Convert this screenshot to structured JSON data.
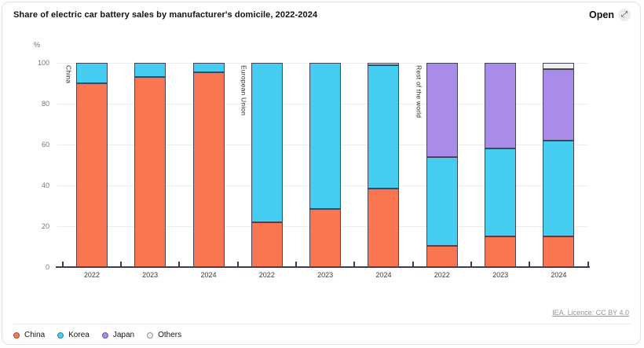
{
  "header": {
    "open_label": "Open",
    "open_icon_glyph": "⤢"
  },
  "footer": {
    "license_link": "IEA. Licence: CC BY 4.0"
  },
  "chart_data": {
    "type": "bar",
    "stacked": true,
    "title": "Share of electric car battery sales by manufacturer's domicile, 2022-2024",
    "ylabel": "%",
    "xlabel": "",
    "ylim": [
      0,
      100
    ],
    "yticks": [
      0,
      20,
      40,
      60,
      80,
      100
    ],
    "grid": "horizontal",
    "legend_position": "bottom-left",
    "series": [
      {
        "name": "China",
        "color": "#fa7650"
      },
      {
        "name": "Korea",
        "color": "#45cdf2"
      },
      {
        "name": "Japan",
        "color": "#a98bea"
      },
      {
        "name": "Others",
        "color": "#efeee9"
      }
    ],
    "groups": [
      {
        "label": "China",
        "years": [
          "2022",
          "2023",
          "2024"
        ],
        "values": [
          [
            90,
            10,
            0,
            0
          ],
          [
            93,
            7,
            0,
            0
          ],
          [
            95.5,
            4.5,
            0,
            0
          ]
        ]
      },
      {
        "label": "European Union",
        "years": [
          "2022",
          "2023",
          "2024"
        ],
        "values": [
          [
            22,
            78,
            0,
            0
          ],
          [
            28.5,
            71.5,
            0,
            0
          ],
          [
            38.5,
            60.5,
            0,
            1
          ]
        ]
      },
      {
        "label": "Rest of the world",
        "years": [
          "2022",
          "2023",
          "2024"
        ],
        "values": [
          [
            10.5,
            43.5,
            46,
            0
          ],
          [
            15,
            43,
            42,
            0
          ],
          [
            15,
            47,
            35,
            3
          ]
        ]
      }
    ]
  }
}
